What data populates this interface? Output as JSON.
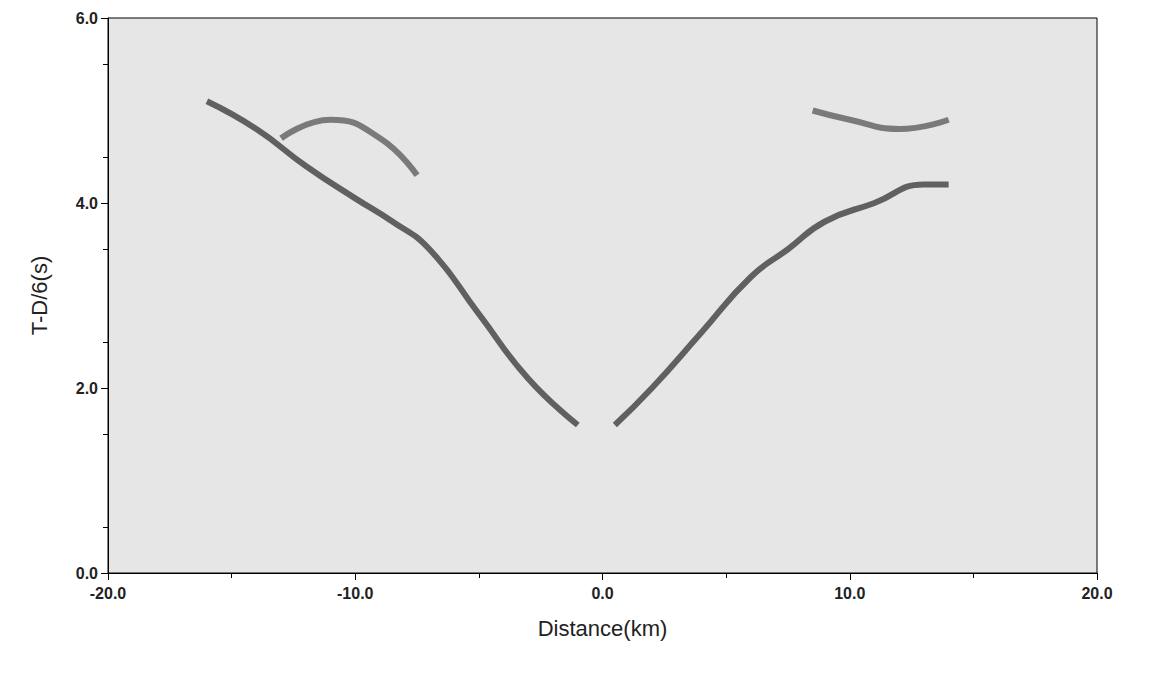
{
  "chart_data": {
    "type": "line",
    "xlabel": "Distance(km)",
    "ylabel": "T-D/6(s)",
    "xlim": [
      -20,
      20
    ],
    "ylim": [
      0,
      6
    ],
    "xticks": [
      {
        "value": -20,
        "label": "-20.0"
      },
      {
        "value": -10,
        "label": "-10.0"
      },
      {
        "value": 0,
        "label": "0.0"
      },
      {
        "value": 10,
        "label": "10.0"
      },
      {
        "value": 20,
        "label": "20.0"
      }
    ],
    "yticks": [
      {
        "value": 0,
        "label": "0.0"
      },
      {
        "value": 2,
        "label": "2.0"
      },
      {
        "value": 4,
        "label": "4.0"
      },
      {
        "value": 6,
        "label": "6.0"
      }
    ],
    "grid": false,
    "series": [
      {
        "color": "#333333",
        "marker": "none",
        "line_style": "solid",
        "x": [
          -16,
          -14,
          -12,
          -10,
          -8.5,
          -7,
          -5,
          -3,
          -1
        ],
        "values": [
          5.1,
          4.8,
          4.4,
          4.05,
          3.8,
          3.5,
          2.8,
          2.1,
          1.6
        ]
      },
      {
        "color": "#333333",
        "marker": "none",
        "line_style": "solid",
        "x": [
          0.5,
          2,
          4,
          6,
          7.5,
          9,
          11,
          13,
          14
        ],
        "values": [
          1.6,
          2.0,
          2.6,
          3.2,
          3.5,
          3.8,
          4.0,
          4.2,
          4.2
        ]
      },
      {
        "color": "#555555",
        "marker": "none",
        "line_style": "solid",
        "x": [
          -13,
          -11,
          -9,
          -7.5
        ],
        "values": [
          4.7,
          4.9,
          4.7,
          4.3
        ]
      },
      {
        "color": "#555555",
        "marker": "none",
        "line_style": "solid",
        "x": [
          8.5,
          10,
          12,
          14
        ],
        "values": [
          5.0,
          4.9,
          4.8,
          4.9
        ]
      }
    ]
  }
}
